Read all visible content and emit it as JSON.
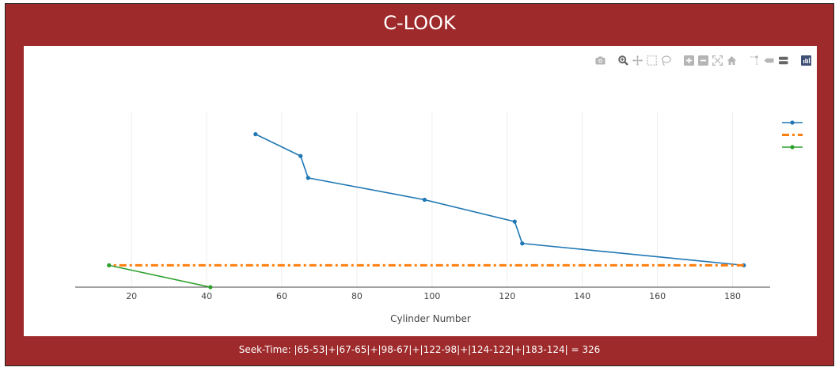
{
  "title": "C-LOOK",
  "seek_text": "Seek-Time: |65-53|+|67-65|+|98-67|+|122-98|+|124-122|+|183-124| = 326",
  "colors": {
    "frame": "#9e2a2b",
    "series_service": "#1f77b4",
    "series_jump": "#ff7f0e",
    "series_tail": "#2ca02c",
    "grid": "#eeeeee"
  },
  "modebar": {
    "icons": [
      "camera-icon",
      "zoom-icon",
      "pan-icon",
      "box-select-icon",
      "lasso-icon",
      "zoom-in-icon",
      "zoom-out-icon",
      "autoscale-icon",
      "reset-axes-icon",
      "spike-lines-icon",
      "hover-closest-icon",
      "hover-compare-icon",
      "plotly-logo-icon"
    ]
  },
  "chart_data": {
    "type": "line",
    "title": "C-LOOK",
    "xlabel": "Cylinder Number",
    "ylabel": "",
    "xlim": [
      5,
      190
    ],
    "ylim": [
      0,
      8
    ],
    "x_ticks": [
      20,
      40,
      60,
      80,
      100,
      120,
      140,
      160,
      180
    ],
    "grid": true,
    "legend_position": "top-right",
    "series": [
      {
        "style": "solid-markers",
        "x": [
          53,
          65,
          67,
          98,
          122,
          124,
          183
        ],
        "y": [
          7,
          6,
          5,
          4,
          3,
          2,
          1
        ]
      },
      {
        "style": "dashdot",
        "x": [
          183,
          14
        ],
        "y": [
          1,
          1
        ]
      },
      {
        "style": "solid-markers",
        "x": [
          14,
          41
        ],
        "y": [
          1,
          0
        ]
      }
    ]
  }
}
